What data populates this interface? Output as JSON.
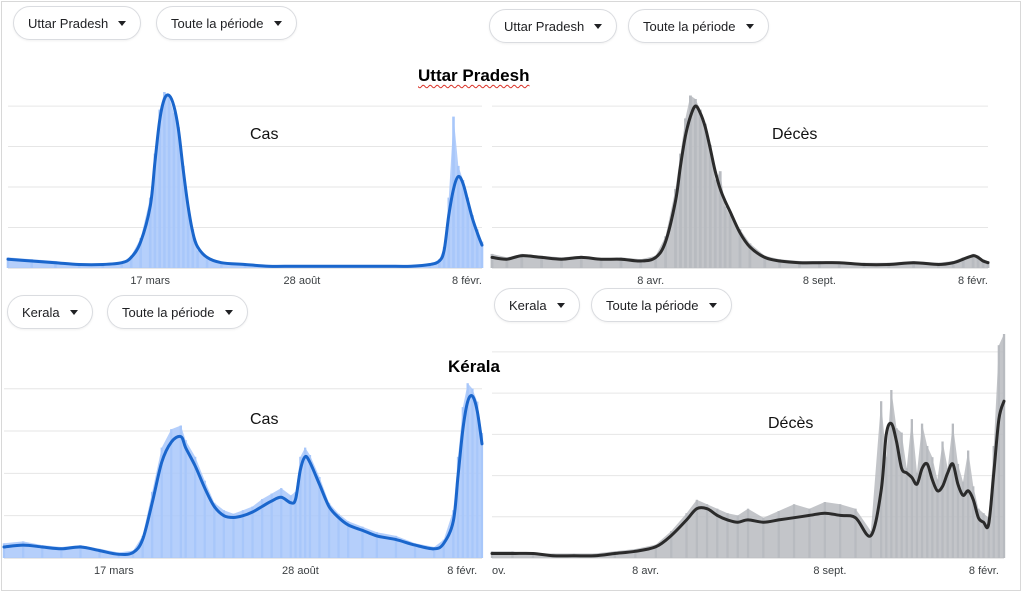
{
  "colors": {
    "cases_line": "#1a66cc",
    "cases_fill": "#a8c7fa",
    "deaths_line": "#2b2b2b",
    "deaths_fill": "#b8bbc0",
    "grid": "#e6e6e6"
  },
  "controls": {
    "up_left": {
      "region": "Uttar Pradesh",
      "period": "Toute la période"
    },
    "up_right": {
      "region": "Uttar Pradesh",
      "period": "Toute la période"
    },
    "kl_left": {
      "region": "Kerala",
      "period": "Toute la période"
    },
    "kl_right": {
      "region": "Kerala",
      "period": "Toute la période"
    }
  },
  "sections": {
    "up_title": "Uttar Pradesh",
    "kl_title": "Kérala"
  },
  "chart_data": [
    {
      "type": "area",
      "title": "Cas",
      "region": "Uttar Pradesh",
      "xlabel": "",
      "ylabel": "",
      "y_axis_labels_shown": false,
      "grid": true,
      "x_ticks": [
        {
          "x": 0.3,
          "label": "17 mars"
        },
        {
          "x": 0.62,
          "label": "28 août"
        },
        {
          "x": 1.0,
          "label": "8 févr."
        }
      ],
      "ylim": [
        0,
        1
      ],
      "series": [
        {
          "role": "smoothed",
          "x": [
            0.0,
            0.05,
            0.1,
            0.15,
            0.2,
            0.24,
            0.26,
            0.28,
            0.3,
            0.31,
            0.32,
            0.33,
            0.34,
            0.35,
            0.36,
            0.37,
            0.38,
            0.39,
            0.4,
            0.42,
            0.45,
            0.5,
            0.55,
            0.6,
            0.65,
            0.7,
            0.75,
            0.8,
            0.85,
            0.89,
            0.91,
            0.92,
            0.93,
            0.94,
            0.95,
            0.96,
            0.97,
            0.98,
            0.99,
            1.0
          ],
          "y": [
            0.05,
            0.04,
            0.03,
            0.02,
            0.02,
            0.03,
            0.06,
            0.15,
            0.35,
            0.6,
            0.84,
            0.96,
            0.98,
            0.92,
            0.78,
            0.55,
            0.35,
            0.2,
            0.12,
            0.06,
            0.03,
            0.02,
            0.01,
            0.01,
            0.01,
            0.01,
            0.01,
            0.01,
            0.01,
            0.02,
            0.04,
            0.1,
            0.3,
            0.45,
            0.52,
            0.48,
            0.38,
            0.28,
            0.2,
            0.13
          ]
        },
        {
          "role": "daily",
          "x": [
            0.0,
            0.05,
            0.1,
            0.15,
            0.2,
            0.24,
            0.26,
            0.28,
            0.3,
            0.31,
            0.32,
            0.33,
            0.34,
            0.35,
            0.36,
            0.37,
            0.38,
            0.39,
            0.4,
            0.42,
            0.45,
            0.5,
            0.55,
            0.6,
            0.65,
            0.7,
            0.75,
            0.8,
            0.85,
            0.89,
            0.91,
            0.92,
            0.93,
            0.94,
            0.95,
            0.96,
            0.97,
            0.98,
            0.99,
            1.0
          ],
          "y": [
            0.06,
            0.05,
            0.04,
            0.02,
            0.02,
            0.03,
            0.07,
            0.17,
            0.4,
            0.65,
            0.9,
            1.0,
            0.97,
            0.88,
            0.8,
            0.58,
            0.33,
            0.22,
            0.1,
            0.05,
            0.03,
            0.02,
            0.01,
            0.01,
            0.01,
            0.01,
            0.01,
            0.01,
            0.01,
            0.02,
            0.05,
            0.12,
            0.4,
            0.86,
            0.58,
            0.5,
            0.4,
            0.3,
            0.22,
            0.15
          ]
        }
      ]
    },
    {
      "type": "area",
      "title": "Décès",
      "region": "Uttar Pradesh",
      "xlabel": "",
      "ylabel": "",
      "y_axis_labels_shown": false,
      "grid": true,
      "x_ticks": [
        {
          "x": 0.32,
          "label": "8 avr."
        },
        {
          "x": 0.66,
          "label": "8 sept."
        },
        {
          "x": 1.0,
          "label": "8 févr."
        }
      ],
      "ylim": [
        0,
        1
      ],
      "series": [
        {
          "role": "smoothed",
          "x": [
            0.0,
            0.03,
            0.06,
            0.1,
            0.14,
            0.18,
            0.22,
            0.26,
            0.3,
            0.33,
            0.35,
            0.37,
            0.38,
            0.39,
            0.4,
            0.41,
            0.42,
            0.43,
            0.44,
            0.45,
            0.46,
            0.47,
            0.48,
            0.5,
            0.52,
            0.55,
            0.58,
            0.62,
            0.66,
            0.7,
            0.75,
            0.8,
            0.85,
            0.9,
            0.93,
            0.95,
            0.97,
            0.98,
            0.99,
            1.0
          ],
          "y": [
            0.06,
            0.05,
            0.07,
            0.06,
            0.05,
            0.06,
            0.05,
            0.05,
            0.04,
            0.06,
            0.15,
            0.38,
            0.58,
            0.75,
            0.86,
            0.92,
            0.88,
            0.8,
            0.68,
            0.55,
            0.45,
            0.38,
            0.32,
            0.2,
            0.12,
            0.06,
            0.04,
            0.03,
            0.03,
            0.03,
            0.02,
            0.02,
            0.03,
            0.02,
            0.03,
            0.05,
            0.07,
            0.06,
            0.04,
            0.03
          ]
        },
        {
          "role": "daily",
          "x": [
            0.0,
            0.03,
            0.06,
            0.1,
            0.14,
            0.18,
            0.22,
            0.26,
            0.3,
            0.33,
            0.35,
            0.37,
            0.38,
            0.39,
            0.4,
            0.41,
            0.42,
            0.43,
            0.44,
            0.45,
            0.46,
            0.47,
            0.48,
            0.5,
            0.52,
            0.55,
            0.58,
            0.62,
            0.66,
            0.7,
            0.75,
            0.8,
            0.85,
            0.9,
            0.93,
            0.95,
            0.97,
            0.98,
            0.99,
            1.0
          ],
          "y": [
            0.08,
            0.06,
            0.08,
            0.07,
            0.06,
            0.07,
            0.05,
            0.06,
            0.05,
            0.07,
            0.18,
            0.45,
            0.65,
            0.85,
            0.98,
            0.96,
            0.9,
            0.82,
            0.7,
            0.5,
            0.55,
            0.35,
            0.3,
            0.22,
            0.14,
            0.07,
            0.05,
            0.04,
            0.04,
            0.03,
            0.03,
            0.03,
            0.04,
            0.03,
            0.04,
            0.06,
            0.08,
            0.07,
            0.05,
            0.04
          ]
        }
      ]
    },
    {
      "type": "area",
      "title": "Cas",
      "region": "Kérala",
      "xlabel": "",
      "ylabel": "",
      "y_axis_labels_shown": false,
      "grid": true,
      "x_ticks": [
        {
          "x": 0.23,
          "label": "17 mars"
        },
        {
          "x": 0.62,
          "label": "28 août"
        },
        {
          "x": 0.99,
          "label": "8 févr."
        }
      ],
      "ylim": [
        0,
        1
      ],
      "series": [
        {
          "role": "smoothed",
          "x": [
            0.0,
            0.04,
            0.08,
            0.12,
            0.16,
            0.2,
            0.24,
            0.27,
            0.29,
            0.31,
            0.33,
            0.35,
            0.37,
            0.38,
            0.4,
            0.42,
            0.44,
            0.46,
            0.48,
            0.5,
            0.52,
            0.54,
            0.56,
            0.58,
            0.6,
            0.61,
            0.62,
            0.63,
            0.64,
            0.66,
            0.68,
            0.7,
            0.72,
            0.75,
            0.78,
            0.82,
            0.86,
            0.9,
            0.92,
            0.94,
            0.95,
            0.96,
            0.97,
            0.98,
            0.99,
            1.0
          ],
          "y": [
            0.06,
            0.07,
            0.06,
            0.05,
            0.06,
            0.04,
            0.02,
            0.03,
            0.1,
            0.3,
            0.52,
            0.63,
            0.66,
            0.6,
            0.5,
            0.38,
            0.28,
            0.23,
            0.22,
            0.23,
            0.25,
            0.28,
            0.31,
            0.33,
            0.3,
            0.32,
            0.48,
            0.55,
            0.52,
            0.4,
            0.28,
            0.22,
            0.18,
            0.15,
            0.12,
            0.1,
            0.07,
            0.05,
            0.08,
            0.2,
            0.45,
            0.7,
            0.85,
            0.88,
            0.8,
            0.62
          ]
        },
        {
          "role": "daily",
          "x": [
            0.0,
            0.04,
            0.08,
            0.12,
            0.16,
            0.2,
            0.24,
            0.27,
            0.29,
            0.31,
            0.33,
            0.35,
            0.37,
            0.38,
            0.4,
            0.42,
            0.44,
            0.46,
            0.48,
            0.5,
            0.52,
            0.54,
            0.56,
            0.58,
            0.6,
            0.61,
            0.62,
            0.63,
            0.64,
            0.66,
            0.68,
            0.7,
            0.72,
            0.75,
            0.78,
            0.82,
            0.86,
            0.9,
            0.92,
            0.94,
            0.95,
            0.96,
            0.97,
            0.98,
            0.99,
            1.0
          ],
          "y": [
            0.08,
            0.09,
            0.07,
            0.06,
            0.07,
            0.05,
            0.03,
            0.04,
            0.12,
            0.36,
            0.6,
            0.7,
            0.72,
            0.64,
            0.55,
            0.42,
            0.3,
            0.26,
            0.24,
            0.26,
            0.28,
            0.32,
            0.35,
            0.38,
            0.34,
            0.36,
            0.55,
            0.6,
            0.56,
            0.44,
            0.3,
            0.24,
            0.2,
            0.17,
            0.14,
            0.12,
            0.08,
            0.06,
            0.1,
            0.26,
            0.55,
            0.82,
            0.95,
            0.92,
            0.85,
            0.68
          ]
        }
      ]
    },
    {
      "type": "area",
      "title": "Décès",
      "region": "Kérala",
      "xlabel": "",
      "ylabel": "",
      "y_axis_labels_shown": false,
      "grid": true,
      "x_ticks": [
        {
          "x": 0.0,
          "label": "ov."
        },
        {
          "x": 0.3,
          "label": "8 avr."
        },
        {
          "x": 0.66,
          "label": "8 sept."
        },
        {
          "x": 0.99,
          "label": "8 févr."
        }
      ],
      "ylim": [
        0,
        1
      ],
      "series": [
        {
          "role": "smoothed",
          "x": [
            0.0,
            0.04,
            0.08,
            0.12,
            0.16,
            0.2,
            0.24,
            0.28,
            0.32,
            0.35,
            0.38,
            0.4,
            0.42,
            0.44,
            0.46,
            0.48,
            0.5,
            0.53,
            0.56,
            0.59,
            0.62,
            0.65,
            0.68,
            0.71,
            0.74,
            0.76,
            0.77,
            0.78,
            0.79,
            0.8,
            0.81,
            0.82,
            0.83,
            0.84,
            0.85,
            0.86,
            0.87,
            0.88,
            0.89,
            0.9,
            0.91,
            0.92,
            0.93,
            0.94,
            0.95,
            0.96,
            0.97,
            0.98,
            0.99,
            1.0
          ],
          "y": [
            0.02,
            0.02,
            0.02,
            0.01,
            0.01,
            0.01,
            0.02,
            0.03,
            0.05,
            0.1,
            0.17,
            0.22,
            0.22,
            0.19,
            0.17,
            0.16,
            0.17,
            0.16,
            0.17,
            0.18,
            0.19,
            0.2,
            0.19,
            0.18,
            0.1,
            0.3,
            0.55,
            0.6,
            0.52,
            0.4,
            0.38,
            0.36,
            0.33,
            0.4,
            0.42,
            0.35,
            0.3,
            0.32,
            0.38,
            0.42,
            0.33,
            0.28,
            0.3,
            0.26,
            0.18,
            0.16,
            0.15,
            0.38,
            0.62,
            0.7
          ]
        },
        {
          "role": "daily",
          "x": [
            0.0,
            0.04,
            0.08,
            0.12,
            0.16,
            0.2,
            0.24,
            0.28,
            0.32,
            0.35,
            0.38,
            0.4,
            0.42,
            0.44,
            0.46,
            0.48,
            0.5,
            0.53,
            0.56,
            0.59,
            0.62,
            0.65,
            0.68,
            0.71,
            0.74,
            0.76,
            0.77,
            0.78,
            0.79,
            0.8,
            0.81,
            0.82,
            0.83,
            0.84,
            0.85,
            0.86,
            0.87,
            0.88,
            0.89,
            0.9,
            0.91,
            0.92,
            0.93,
            0.94,
            0.95,
            0.96,
            0.97,
            0.98,
            0.99,
            1.0
          ],
          "y": [
            0.03,
            0.03,
            0.02,
            0.02,
            0.02,
            0.02,
            0.03,
            0.04,
            0.06,
            0.12,
            0.2,
            0.26,
            0.24,
            0.22,
            0.2,
            0.19,
            0.22,
            0.18,
            0.21,
            0.24,
            0.22,
            0.25,
            0.24,
            0.22,
            0.12,
            0.7,
            0.45,
            0.75,
            0.58,
            0.56,
            0.4,
            0.62,
            0.38,
            0.6,
            0.5,
            0.45,
            0.35,
            0.52,
            0.4,
            0.6,
            0.42,
            0.34,
            0.48,
            0.32,
            0.22,
            0.2,
            0.18,
            0.5,
            0.95,
            1.0
          ]
        }
      ]
    }
  ]
}
